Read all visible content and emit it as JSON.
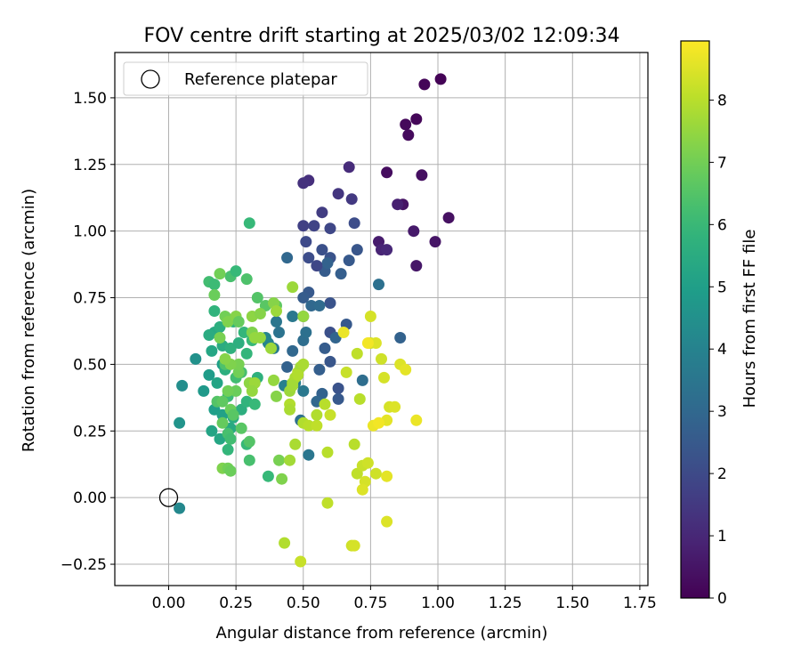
{
  "chart_data": {
    "type": "scatter",
    "title": "FOV centre drift starting at 2025/03/02 12:09:34",
    "xlabel": "Angular distance from reference (arcmin)",
    "ylabel": "Rotation from reference (arcmin)",
    "xlim": [
      -0.2,
      1.78
    ],
    "ylim": [
      -0.33,
      1.67
    ],
    "xticks": [
      0.0,
      0.25,
      0.5,
      0.75,
      1.0,
      1.25,
      1.5,
      1.75
    ],
    "xtick_labels": [
      "0.00",
      "0.25",
      "0.50",
      "0.75",
      "1.00",
      "1.25",
      "1.50",
      "1.75"
    ],
    "yticks": [
      -0.25,
      0.0,
      0.25,
      0.5,
      0.75,
      1.0,
      1.25,
      1.5
    ],
    "ytick_labels": [
      "−0.25",
      "0.00",
      "0.25",
      "0.50",
      "0.75",
      "1.00",
      "1.25",
      "1.50"
    ],
    "grid": true,
    "legend": {
      "position": "top-left",
      "entries": [
        "Reference platepar"
      ]
    },
    "reference_point": [
      0.0,
      0.0
    ],
    "colorbar": {
      "label": "Hours from first FF file",
      "range": [
        0,
        8.95
      ],
      "ticks": [
        0,
        1,
        2,
        3,
        4,
        5,
        6,
        7,
        8
      ],
      "tick_labels": [
        "0",
        "1",
        "2",
        "3",
        "4",
        "5",
        "6",
        "7",
        "8"
      ],
      "colormap": "viridis"
    },
    "points": [
      [
        1.01,
        1.57,
        0.05
      ],
      [
        0.95,
        1.55,
        0.1
      ],
      [
        0.92,
        1.42,
        0.15
      ],
      [
        0.88,
        1.4,
        0.2
      ],
      [
        0.89,
        1.36,
        0.25
      ],
      [
        0.81,
        1.22,
        0.3
      ],
      [
        0.94,
        1.21,
        0.35
      ],
      [
        1.04,
        1.05,
        0.4
      ],
      [
        0.87,
        1.1,
        0.45
      ],
      [
        0.99,
        0.96,
        0.5
      ],
      [
        0.92,
        0.87,
        0.55
      ],
      [
        0.91,
        1.0,
        0.6
      ],
      [
        0.78,
        0.96,
        0.7
      ],
      [
        0.85,
        1.1,
        0.8
      ],
      [
        0.79,
        0.93,
        0.9
      ],
      [
        0.81,
        0.93,
        1.0
      ],
      [
        0.67,
        1.24,
        1.1
      ],
      [
        0.52,
        1.19,
        1.2
      ],
      [
        0.5,
        1.18,
        1.3
      ],
      [
        0.63,
        1.14,
        1.4
      ],
      [
        0.68,
        1.12,
        1.5
      ],
      [
        0.57,
        1.07,
        1.6
      ],
      [
        0.5,
        1.02,
        1.7
      ],
      [
        0.54,
        1.02,
        1.8
      ],
      [
        0.6,
        1.01,
        1.9
      ],
      [
        0.51,
        0.96,
        2.0
      ],
      [
        0.69,
        1.03,
        2.1
      ],
      [
        0.57,
        0.93,
        2.2
      ],
      [
        0.6,
        0.9,
        2.3
      ],
      [
        0.7,
        0.93,
        2.4
      ],
      [
        0.67,
        0.89,
        2.5
      ],
      [
        0.58,
        0.85,
        2.6
      ],
      [
        0.64,
        0.84,
        2.7
      ],
      [
        0.59,
        0.88,
        2.8
      ],
      [
        0.55,
        0.87,
        1.9
      ],
      [
        0.52,
        0.9,
        2.1
      ],
      [
        0.44,
        0.9,
        3.0
      ],
      [
        0.52,
        0.77,
        2.5
      ],
      [
        0.5,
        0.75,
        2.6
      ],
      [
        0.6,
        0.73,
        2.3
      ],
      [
        0.5,
        0.68,
        2.8
      ],
      [
        0.53,
        0.72,
        3.0
      ],
      [
        0.56,
        0.72,
        3.1
      ],
      [
        0.6,
        0.62,
        2.2
      ],
      [
        0.66,
        0.65,
        2.5
      ],
      [
        0.62,
        0.6,
        2.9
      ],
      [
        0.58,
        0.56,
        2.6
      ],
      [
        0.6,
        0.51,
        2.4
      ],
      [
        0.56,
        0.48,
        2.7
      ],
      [
        0.63,
        0.41,
        2.3
      ],
      [
        0.63,
        0.37,
        2.5
      ],
      [
        0.57,
        0.39,
        2.8
      ],
      [
        0.55,
        0.36,
        3.0
      ],
      [
        0.48,
        0.46,
        2.6
      ],
      [
        0.44,
        0.49,
        2.8
      ],
      [
        0.46,
        0.55,
        3.0
      ],
      [
        0.5,
        0.59,
        3.2
      ],
      [
        0.51,
        0.62,
        3.3
      ],
      [
        0.41,
        0.62,
        3.4
      ],
      [
        0.4,
        0.66,
        3.5
      ],
      [
        0.46,
        0.68,
        3.6
      ],
      [
        0.72,
        0.44,
        3.2
      ],
      [
        0.78,
        0.8,
        3.3
      ],
      [
        0.86,
        0.6,
        2.8
      ],
      [
        0.5,
        0.4,
        3.6
      ],
      [
        0.47,
        0.43,
        3.8
      ],
      [
        0.43,
        0.42,
        3.9
      ],
      [
        0.39,
        0.56,
        3.7
      ],
      [
        0.37,
        0.58,
        4.0
      ],
      [
        0.36,
        0.6,
        4.1
      ],
      [
        0.52,
        0.16,
        3.5
      ],
      [
        0.49,
        0.29,
        3.3
      ],
      [
        0.04,
        -0.04,
        4.2
      ],
      [
        0.05,
        0.42,
        4.4
      ],
      [
        0.1,
        0.52,
        4.5
      ],
      [
        0.04,
        0.28,
        4.6
      ],
      [
        0.13,
        0.4,
        4.8
      ],
      [
        0.15,
        0.46,
        4.9
      ],
      [
        0.17,
        0.33,
        5.0
      ],
      [
        0.2,
        0.31,
        5.1
      ],
      [
        0.16,
        0.25,
        5.2
      ],
      [
        0.19,
        0.22,
        5.3
      ],
      [
        0.23,
        0.26,
        5.4
      ],
      [
        0.24,
        0.3,
        5.5
      ],
      [
        0.27,
        0.33,
        5.6
      ],
      [
        0.18,
        0.43,
        5.2
      ],
      [
        0.2,
        0.5,
        5.0
      ],
      [
        0.16,
        0.55,
        5.3
      ],
      [
        0.2,
        0.57,
        5.5
      ],
      [
        0.23,
        0.56,
        5.7
      ],
      [
        0.17,
        0.62,
        5.4
      ],
      [
        0.19,
        0.64,
        5.6
      ],
      [
        0.24,
        0.66,
        5.8
      ],
      [
        0.28,
        0.62,
        5.9
      ],
      [
        0.31,
        0.59,
        6.0
      ],
      [
        0.26,
        0.58,
        5.6
      ],
      [
        0.17,
        0.7,
        5.8
      ],
      [
        0.15,
        0.61,
        5.5
      ],
      [
        0.21,
        0.48,
        5.6
      ],
      [
        0.29,
        0.54,
        5.9
      ],
      [
        0.33,
        0.45,
        5.7
      ],
      [
        0.29,
        0.36,
        5.8
      ],
      [
        0.32,
        0.35,
        6.0
      ],
      [
        0.22,
        0.38,
        6.1
      ],
      [
        0.25,
        0.45,
        6.2
      ],
      [
        0.27,
        0.47,
        6.3
      ],
      [
        0.21,
        0.5,
        6.4
      ],
      [
        0.15,
        0.81,
        6.2
      ],
      [
        0.17,
        0.8,
        6.1
      ],
      [
        0.23,
        0.83,
        6.3
      ],
      [
        0.25,
        0.85,
        6.0
      ],
      [
        0.29,
        0.82,
        6.4
      ],
      [
        0.3,
        1.03,
        6.0
      ],
      [
        0.33,
        0.75,
        6.5
      ],
      [
        0.36,
        0.72,
        6.6
      ],
      [
        0.4,
        0.72,
        6.7
      ],
      [
        0.37,
        0.08,
        6.0
      ],
      [
        0.3,
        0.14,
        6.3
      ],
      [
        0.22,
        0.18,
        5.9
      ],
      [
        0.22,
        0.24,
        6.3
      ],
      [
        0.29,
        0.2,
        6.0
      ],
      [
        0.3,
        0.21,
        6.5
      ],
      [
        0.27,
        0.26,
        6.6
      ],
      [
        0.23,
        0.22,
        6.2
      ],
      [
        0.2,
        0.28,
        6.8
      ],
      [
        0.18,
        0.36,
        6.5
      ],
      [
        0.2,
        0.36,
        6.7
      ],
      [
        0.23,
        0.33,
        6.9
      ],
      [
        0.24,
        0.31,
        6.6
      ],
      [
        0.25,
        0.4,
        6.9
      ],
      [
        0.22,
        0.4,
        7.0
      ],
      [
        0.26,
        0.47,
        7.0
      ],
      [
        0.26,
        0.5,
        7.1
      ],
      [
        0.23,
        0.5,
        7.2
      ],
      [
        0.21,
        0.52,
        7.3
      ],
      [
        0.19,
        0.6,
        7.1
      ],
      [
        0.21,
        0.68,
        7.0
      ],
      [
        0.22,
        0.66,
        7.2
      ],
      [
        0.25,
        0.68,
        7.3
      ],
      [
        0.26,
        0.66,
        6.8
      ],
      [
        0.31,
        0.68,
        7.4
      ],
      [
        0.34,
        0.69,
        7.3
      ],
      [
        0.31,
        0.62,
        7.2
      ],
      [
        0.32,
        0.6,
        7.5
      ],
      [
        0.34,
        0.6,
        7.5
      ],
      [
        0.3,
        0.43,
        7.4
      ],
      [
        0.32,
        0.43,
        7.6
      ],
      [
        0.31,
        0.4,
        7.5
      ],
      [
        0.39,
        0.44,
        7.5
      ],
      [
        0.4,
        0.38,
        7.3
      ],
      [
        0.41,
        0.14,
        7.1
      ],
      [
        0.42,
        0.07,
        7.2
      ],
      [
        0.2,
        0.11,
        7.2
      ],
      [
        0.22,
        0.11,
        7.0
      ],
      [
        0.23,
        0.1,
        6.9
      ],
      [
        0.17,
        0.76,
        6.9
      ],
      [
        0.19,
        0.84,
        7.0
      ],
      [
        0.39,
        0.73,
        7.3
      ],
      [
        0.38,
        0.56,
        7.6
      ],
      [
        0.4,
        0.7,
        7.6
      ],
      [
        0.45,
        0.4,
        7.6
      ],
      [
        0.46,
        0.43,
        7.7
      ],
      [
        0.47,
        0.45,
        7.8
      ],
      [
        0.48,
        0.47,
        7.9
      ],
      [
        0.49,
        0.49,
        7.7
      ],
      [
        0.5,
        0.5,
        7.8
      ],
      [
        0.48,
        0.46,
        7.9
      ],
      [
        0.46,
        0.42,
        7.7
      ],
      [
        0.45,
        0.35,
        7.9
      ],
      [
        0.45,
        0.33,
        7.8
      ],
      [
        0.46,
        0.79,
        7.6
      ],
      [
        0.5,
        0.68,
        7.5
      ],
      [
        0.45,
        0.14,
        7.7
      ],
      [
        0.47,
        0.2,
        7.8
      ],
      [
        0.5,
        0.28,
        7.9
      ],
      [
        0.52,
        0.27,
        8.0
      ],
      [
        0.55,
        0.27,
        8.1
      ],
      [
        0.55,
        0.31,
        7.9
      ],
      [
        0.58,
        0.35,
        8.0
      ],
      [
        0.6,
        0.31,
        8.2
      ],
      [
        0.59,
        0.17,
        8.0
      ],
      [
        0.59,
        -0.02,
        8.1
      ],
      [
        0.43,
        -0.17,
        7.9
      ],
      [
        0.49,
        -0.24,
        8.2
      ],
      [
        0.68,
        -0.18,
        8.3
      ],
      [
        0.69,
        -0.18,
        8.4
      ],
      [
        0.69,
        0.2,
        8.0
      ],
      [
        0.7,
        0.09,
        8.1
      ],
      [
        0.72,
        0.12,
        8.2
      ],
      [
        0.74,
        0.13,
        8.3
      ],
      [
        0.73,
        0.06,
        8.4
      ],
      [
        0.72,
        0.03,
        8.5
      ],
      [
        0.77,
        0.09,
        8.3
      ],
      [
        0.81,
        0.08,
        8.6
      ],
      [
        0.81,
        -0.09,
        8.5
      ],
      [
        0.7,
        0.54,
        8.1
      ],
      [
        0.75,
        0.58,
        8.3
      ],
      [
        0.75,
        0.68,
        8.4
      ],
      [
        0.77,
        0.58,
        8.5
      ],
      [
        0.79,
        0.52,
        8.3
      ],
      [
        0.8,
        0.45,
        8.4
      ],
      [
        0.86,
        0.5,
        8.5
      ],
      [
        0.88,
        0.48,
        8.6
      ],
      [
        0.82,
        0.34,
        8.4
      ],
      [
        0.84,
        0.34,
        8.5
      ],
      [
        0.81,
        0.29,
        8.6
      ],
      [
        0.76,
        0.27,
        8.7
      ],
      [
        0.78,
        0.28,
        8.8
      ],
      [
        0.92,
        0.29,
        8.7
      ],
      [
        0.74,
        0.58,
        8.8
      ],
      [
        0.66,
        0.47,
        8.2
      ],
      [
        0.65,
        0.62,
        8.7
      ],
      [
        0.71,
        0.37,
        8.0
      ]
    ]
  }
}
